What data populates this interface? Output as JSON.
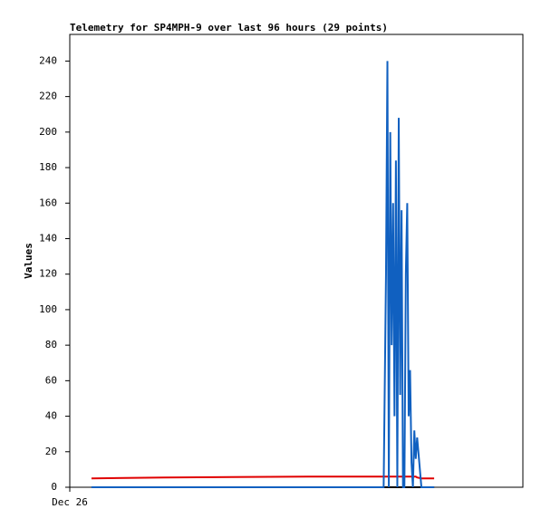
{
  "chart_data": {
    "type": "line",
    "title": "Telemetry for SP4MPH-9 over last 96 hours (29 points)",
    "y_label": "Values",
    "x": [
      4.6,
      20.0,
      50.5,
      66.5,
      67.0,
      67.3,
      67.6,
      67.9,
      68.2,
      68.5,
      68.8,
      69.1,
      69.4,
      69.7,
      70.0,
      70.3,
      70.6,
      70.9,
      71.2,
      71.5,
      71.8,
      72.1,
      72.4,
      72.7,
      73.0,
      73.3,
      73.6,
      74.5,
      77.2
    ],
    "series": [
      {
        "color": "#000000",
        "values": [
          0,
          0,
          0,
          0,
          0,
          0,
          0,
          0,
          0,
          0,
          0,
          0,
          0,
          0,
          0,
          0,
          0,
          0,
          0,
          0,
          0,
          0,
          0,
          0,
          0,
          0,
          0,
          0,
          0
        ]
      },
      {
        "color": "#e00000",
        "values": [
          5,
          5.5,
          6,
          6,
          6,
          6,
          6,
          6,
          6,
          6,
          6,
          6,
          6,
          6,
          6,
          6,
          6,
          6,
          6,
          6,
          6,
          6,
          6,
          6,
          6,
          6,
          5.5,
          5,
          5
        ]
      },
      {
        "color": "#1060c0",
        "values": [
          0,
          0,
          0,
          0,
          120,
          240,
          0,
          200,
          80,
          160,
          40,
          184,
          0,
          208,
          52,
          156,
          0,
          0,
          120,
          160,
          40,
          66,
          14,
          0,
          32,
          16,
          28,
          0,
          0
        ]
      }
    ],
    "xlim": [
      0,
      96
    ],
    "xticks": [
      {
        "value": 0,
        "label": "Dec 26"
      }
    ],
    "ylim": [
      0,
      255
    ],
    "yticks": [
      0,
      20,
      40,
      60,
      80,
      100,
      120,
      140,
      160,
      180,
      200,
      220,
      240
    ],
    "grid": false
  }
}
